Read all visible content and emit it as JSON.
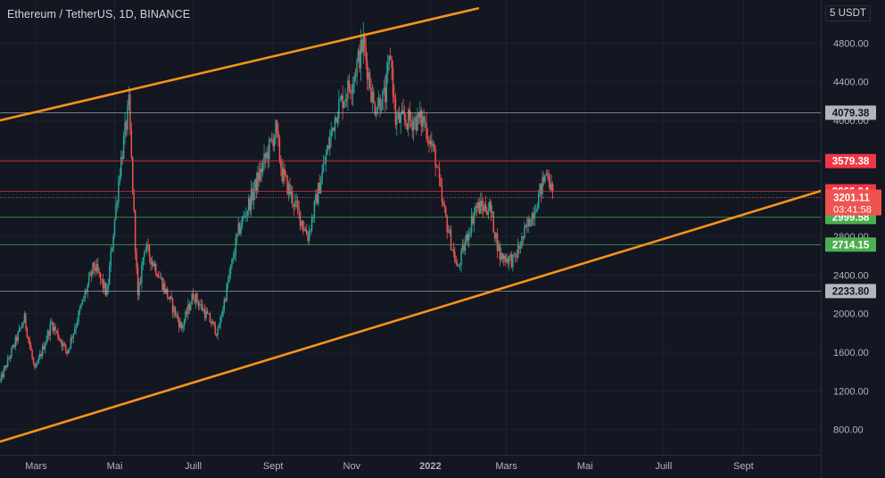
{
  "header": {
    "title": "Ethereum / TetherUS, 1D, BINANCE",
    "currency": "5 USDT"
  },
  "colors": {
    "background": "#131722",
    "up": "#26a69a",
    "down": "#ef5350",
    "trendline": "#f7931a",
    "resistance_red": "#f23645",
    "support_green": "#4caf50",
    "grey_level": "#b2b5be",
    "axis_text": "#b2b5be"
  },
  "chart_data": {
    "type": "candlestick",
    "symbol": "ETH/USDT",
    "interval": "1D",
    "exchange": "BINANCE",
    "ylim": [
      400,
      5200
    ],
    "y_ticks": [
      800,
      1200,
      1600,
      2000,
      2400,
      2800,
      3200,
      3600,
      4000,
      4400,
      4800
    ],
    "y_tick_labels": [
      "800.00",
      "1200.00",
      "1600.00",
      "2000.00",
      "2400.00",
      "2800.00",
      "3200.00",
      "3600.00",
      "4000.00",
      "4400.00",
      "4800.00"
    ],
    "x_labels": [
      "Mars",
      "Mai",
      "Juill",
      "Sept",
      "Nov",
      "2022",
      "Mars",
      "Mai",
      "Juill",
      "Sept"
    ],
    "x_label_dates": [
      "2021-03-01",
      "2021-05-01",
      "2021-07-01",
      "2021-09-01",
      "2021-11-01",
      "2022-01-01",
      "2022-03-01",
      "2022-05-01",
      "2022-07-01",
      "2022-09-01"
    ],
    "date_range": [
      "2021-02-01",
      "2022-10-31"
    ],
    "last_price": {
      "value": "3201.11",
      "countdown": "03:41:58"
    },
    "horizontal_levels": [
      {
        "value": 4079.38,
        "label": "4079.38",
        "style": "grey"
      },
      {
        "value": 3579.38,
        "label": "3579.38",
        "style": "red"
      },
      {
        "value": 3266.04,
        "label": "3266.04",
        "style": "red"
      },
      {
        "value": 2999.58,
        "label": "2999.58",
        "style": "green"
      },
      {
        "value": 2714.15,
        "label": "2714.15",
        "style": "green"
      },
      {
        "value": 2233.8,
        "label": "2233.80",
        "style": "grey"
      }
    ],
    "trendlines": [
      {
        "name": "upper channel",
        "from": {
          "date": "2021-02-01",
          "price": 4000
        },
        "to": {
          "date": "2022-02-07",
          "price": 5160
        }
      },
      {
        "name": "lower channel",
        "from": {
          "date": "2021-02-01",
          "price": 675
        },
        "to": {
          "date": "2022-10-31",
          "price": 3270
        }
      }
    ],
    "price_path": [
      {
        "date": "2021-02-01",
        "price": 1300
      },
      {
        "date": "2021-02-20",
        "price": 1950
      },
      {
        "date": "2021-02-28",
        "price": 1400
      },
      {
        "date": "2021-03-13",
        "price": 1900
      },
      {
        "date": "2021-03-25",
        "price": 1600
      },
      {
        "date": "2021-04-15",
        "price": 2500
      },
      {
        "date": "2021-04-25",
        "price": 2200
      },
      {
        "date": "2021-05-05",
        "price": 3500
      },
      {
        "date": "2021-05-12",
        "price": 4150
      },
      {
        "date": "2021-05-19",
        "price": 2150
      },
      {
        "date": "2021-05-24",
        "price": 2700
      },
      {
        "date": "2021-06-01",
        "price": 2500
      },
      {
        "date": "2021-06-22",
        "price": 1850
      },
      {
        "date": "2021-07-01",
        "price": 2200
      },
      {
        "date": "2021-07-20",
        "price": 1800
      },
      {
        "date": "2021-08-05",
        "price": 2850
      },
      {
        "date": "2021-08-15",
        "price": 3200
      },
      {
        "date": "2021-09-03",
        "price": 3900
      },
      {
        "date": "2021-09-08",
        "price": 3450
      },
      {
        "date": "2021-09-28",
        "price": 2800
      },
      {
        "date": "2021-10-20",
        "price": 4100
      },
      {
        "date": "2021-11-01",
        "price": 4400
      },
      {
        "date": "2021-11-10",
        "price": 4800
      },
      {
        "date": "2021-11-18",
        "price": 4150
      },
      {
        "date": "2021-11-27",
        "price": 4250
      },
      {
        "date": "2021-12-01",
        "price": 4700
      },
      {
        "date": "2021-12-05",
        "price": 4000
      },
      {
        "date": "2021-12-27",
        "price": 4000
      },
      {
        "date": "2022-01-05",
        "price": 3600
      },
      {
        "date": "2022-01-10",
        "price": 3150
      },
      {
        "date": "2022-01-22",
        "price": 2450
      },
      {
        "date": "2022-02-05",
        "price": 3100
      },
      {
        "date": "2022-02-16",
        "price": 3100
      },
      {
        "date": "2022-02-24",
        "price": 2600
      },
      {
        "date": "2022-03-07",
        "price": 2550
      },
      {
        "date": "2022-03-23",
        "price": 3100
      },
      {
        "date": "2022-04-02",
        "price": 3500
      },
      {
        "date": "2022-04-06",
        "price": 3200
      }
    ]
  }
}
